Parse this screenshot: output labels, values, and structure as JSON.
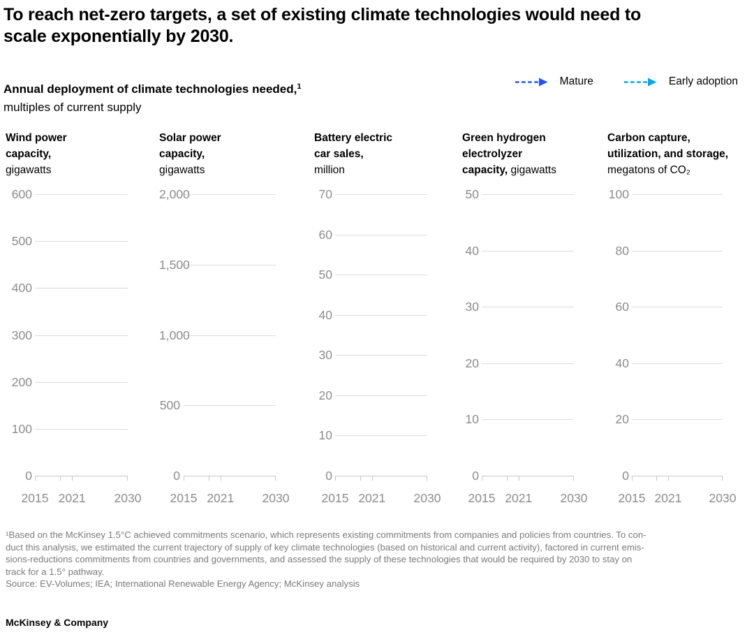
{
  "header": {
    "title_lines": [
      "To reach net-zero targets, a set of existing climate technologies would need to",
      "scale exponentially by 2030."
    ],
    "subtitle_bold": "Annual deployment of climate technologies needed,",
    "subtitle_sup": "1",
    "subtitle_unit": "multiples of current supply"
  },
  "legend": {
    "items": [
      {
        "label": "Mature",
        "color": "#2251FF"
      },
      {
        "label": "Early adoption",
        "color": "#00A9F4"
      }
    ]
  },
  "chart_data": [
    {
      "type": "line",
      "title_lines": [
        {
          "bold": "Wind power"
        },
        {
          "bold": "capacity,"
        },
        {
          "regular": "gigawatts"
        }
      ],
      "unit": "gigawatts",
      "y_ticks": [
        600,
        500,
        400,
        300,
        200,
        100,
        0
      ],
      "y_tick_labels": [
        "600",
        "500",
        "400",
        "300",
        "200",
        "100",
        "0"
      ],
      "ylim": [
        0,
        600
      ],
      "x_tick_labels": [
        "2015",
        "2021",
        "2030"
      ],
      "xlim": [
        2015,
        2030
      ],
      "grid": true,
      "series": []
    },
    {
      "type": "line",
      "title_lines": [
        {
          "bold": "Solar power"
        },
        {
          "bold": "capacity,"
        },
        {
          "regular": "gigawatts"
        }
      ],
      "unit": "gigawatts",
      "y_ticks": [
        2000,
        1500,
        1000,
        500,
        0
      ],
      "y_tick_labels": [
        "2,000",
        "1,500",
        "1,000",
        "500",
        "0"
      ],
      "ylim": [
        0,
        2000
      ],
      "x_tick_labels": [
        "2015",
        "2021",
        "2030"
      ],
      "xlim": [
        2015,
        2030
      ],
      "grid": true,
      "series": []
    },
    {
      "type": "line",
      "title_lines": [
        {
          "bold": "Battery electric"
        },
        {
          "bold": "car sales,"
        },
        {
          "regular": "million"
        }
      ],
      "unit": "million",
      "y_ticks": [
        70,
        60,
        50,
        40,
        30,
        20,
        10,
        0
      ],
      "y_tick_labels": [
        "70",
        "60",
        "50",
        "40",
        "30",
        "20",
        "10",
        "0"
      ],
      "ylim": [
        0,
        70
      ],
      "x_tick_labels": [
        "2015",
        "2021",
        "2030"
      ],
      "xlim": [
        2015,
        2030
      ],
      "grid": true,
      "series": []
    },
    {
      "type": "line",
      "title_lines": [
        {
          "bold": "Green hydrogen"
        },
        {
          "bold": "electrolyzer"
        },
        {
          "bold": "capacity,",
          "regular": " gigawatts"
        }
      ],
      "unit": "gigawatts",
      "y_ticks": [
        50,
        40,
        30,
        20,
        10,
        0
      ],
      "y_tick_labels": [
        "50",
        "40",
        "30",
        "20",
        "10",
        "0"
      ],
      "ylim": [
        0,
        50
      ],
      "x_tick_labels": [
        "2015",
        "2021",
        "2030"
      ],
      "xlim": [
        2015,
        2030
      ],
      "grid": true,
      "series": []
    },
    {
      "type": "line",
      "title_lines": [
        {
          "bold": "Carbon capture,"
        },
        {
          "bold": "utilization, and storage,"
        },
        {
          "regular": "megatons of CO₂"
        }
      ],
      "unit": "megatons of CO₂",
      "y_ticks": [
        100,
        80,
        60,
        40,
        20,
        0
      ],
      "y_tick_labels": [
        "100",
        "80",
        "60",
        "40",
        "20",
        "0"
      ],
      "ylim": [
        0,
        100
      ],
      "x_tick_labels": [
        "2015",
        "2021",
        "2030"
      ],
      "xlim": [
        2015,
        2030
      ],
      "grid": true,
      "series": []
    }
  ],
  "footnote": {
    "lines": [
      "¹Based on the McKinsey 1.5°C achieved commitments scenario, which represents existing commitments from companies and policies from countries. To con-",
      "duct this analysis, we estimated the current trajectory of supply of key climate technologies (based on historical and current activity), factored in current emis-",
      "sions-reductions commitments from countries and governments, and assessed the supply of these technologies that would be required by 2030 to stay on",
      "track for a 1.5° pathway."
    ],
    "source": "Source: EV-Volumes; IEA; International Renewable Energy Agency; McKinsey analysis"
  },
  "footer": {
    "brand": "McKinsey & Company"
  }
}
